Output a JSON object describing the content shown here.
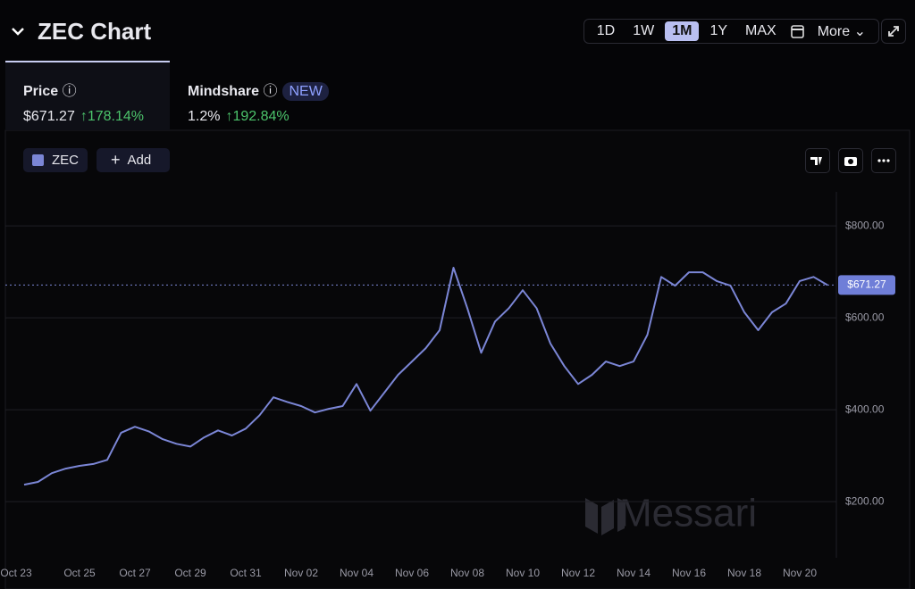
{
  "header": {
    "title": "ZEC Chart",
    "timeframes": [
      "1D",
      "1W",
      "1M",
      "1Y",
      "MAX"
    ],
    "active_timeframe": 2,
    "more": "More"
  },
  "tabs": [
    {
      "label": "Price",
      "value": "$671.27",
      "change": "178.14%"
    },
    {
      "label": "Mindshare",
      "badge": "NEW",
      "value": "1.2%",
      "change": "192.84%"
    }
  ],
  "toolbar": {
    "add": "Add"
  },
  "watermark": "Messari",
  "chart_data": {
    "type": "line",
    "categories": [
      "Oct 23",
      null,
      null,
      null,
      "Oct 25",
      null,
      null,
      null,
      "Oct 27",
      null,
      null,
      null,
      "Oct 29",
      null,
      null,
      null,
      "Oct 31",
      null,
      null,
      null,
      "Nov 02",
      null,
      null,
      null,
      "Nov 04",
      null,
      null,
      null,
      "Nov 06",
      null,
      null,
      null,
      "Nov 08",
      null,
      null,
      null,
      "Nov 10",
      null,
      null,
      null,
      "Nov 12",
      null,
      null,
      null,
      "Nov 14",
      null,
      null,
      null,
      "Nov 16",
      null,
      null,
      null,
      "Nov 18",
      null,
      null,
      null,
      "Nov 20",
      null,
      null
    ],
    "series": [
      {
        "name": "ZEC",
        "color": "#7b86d6",
        "values": [
          237,
          243,
          262,
          272,
          278,
          282,
          291,
          350,
          363,
          353,
          336,
          326,
          320,
          340,
          355,
          344,
          359,
          388,
          427,
          417,
          408,
          394,
          402,
          408,
          456,
          398,
          437,
          476,
          505,
          534,
          573,
          709,
          621,
          524,
          592,
          621,
          660,
          621,
          544,
          495,
          456,
          476,
          505,
          495,
          505,
          563,
          689,
          670,
          699,
          699,
          680,
          670,
          612,
          573,
          612,
          631,
          680,
          689,
          671.27
        ]
      }
    ],
    "last_price_label": "$671.27",
    "ylim": [
      78,
      874
    ],
    "yticks": [
      {
        "value": 200,
        "label": "$200.00"
      },
      {
        "value": 400,
        "label": "$400.00"
      },
      {
        "value": 600,
        "label": "$600.00"
      },
      {
        "value": 800,
        "label": "$800.00"
      }
    ],
    "grid": true
  }
}
